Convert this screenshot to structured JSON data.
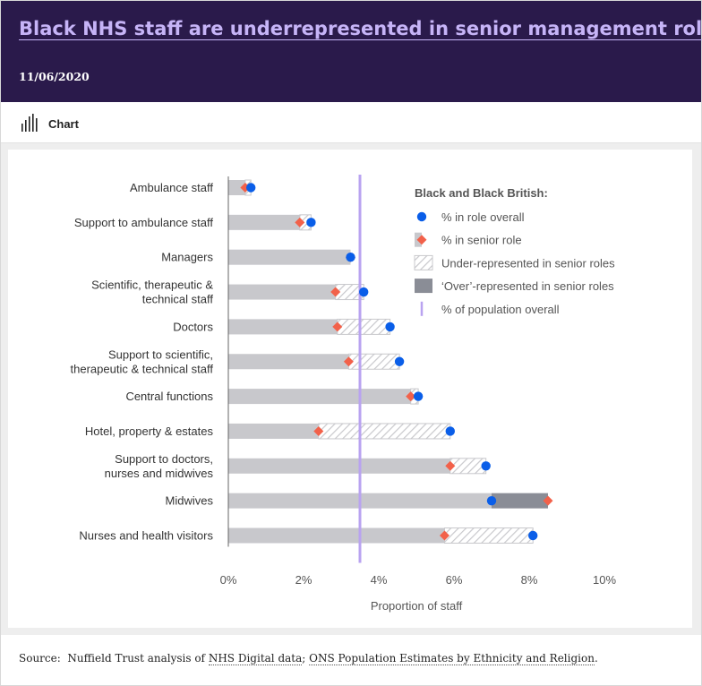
{
  "header": {
    "title": "Black NHS staff are underrepresented in senior management roles",
    "date": "11/06/2020"
  },
  "tabs": [
    {
      "label": "Chart",
      "icon": "bar-chart-icon"
    }
  ],
  "colors": {
    "header_bg": "#2a1a4b",
    "title": "#c6b4f7",
    "bar": "#c8c8cc",
    "over": "#8a8d96",
    "overall_dot": "#0a5ee8",
    "senior_marker": "#f2614a",
    "population_line": "#b9a3f0"
  },
  "chart_data": {
    "type": "bar",
    "orientation": "horizontal",
    "xlabel": "Proportion of staff",
    "xlim": [
      0,
      10
    ],
    "x_unit": "%",
    "xticks": [
      "0%",
      "2%",
      "4%",
      "6%",
      "8%",
      "10%"
    ],
    "population_overall": 3.5,
    "categories": [
      "Ambulance staff",
      "Support to ambulance staff",
      "Managers",
      "Scientific, therapeutic & technical staff",
      "Doctors",
      "Support to scientific, therapeutic & technical staff",
      "Central functions",
      "Hotel, property & estates",
      "Support to doctors, nurses and midwives",
      "Midwives",
      "Nurses and health visitors"
    ],
    "series": [
      {
        "name": "% in role overall",
        "values": [
          0.6,
          2.2,
          3.25,
          3.6,
          4.3,
          4.55,
          5.05,
          5.9,
          6.85,
          7.0,
          8.1
        ]
      },
      {
        "name": "% in senior role",
        "values": [
          0.45,
          1.9,
          3.25,
          2.85,
          2.9,
          3.2,
          4.85,
          2.4,
          5.9,
          8.5,
          5.75
        ]
      }
    ],
    "legend": {
      "position": "top-right",
      "title": "Black and Black British:",
      "entries": [
        "% in role overall",
        "% in senior role",
        "Under-represented in senior roles",
        "‘Over’-represented in senior roles",
        "% of population overall"
      ]
    }
  },
  "source": {
    "prefix": "Source:",
    "text": "Nuffield Trust analysis of",
    "link1": "NHS Digital data",
    "sep": ";",
    "link2": "ONS Population Estimates by Ethnicity and Religion",
    "end": "."
  }
}
